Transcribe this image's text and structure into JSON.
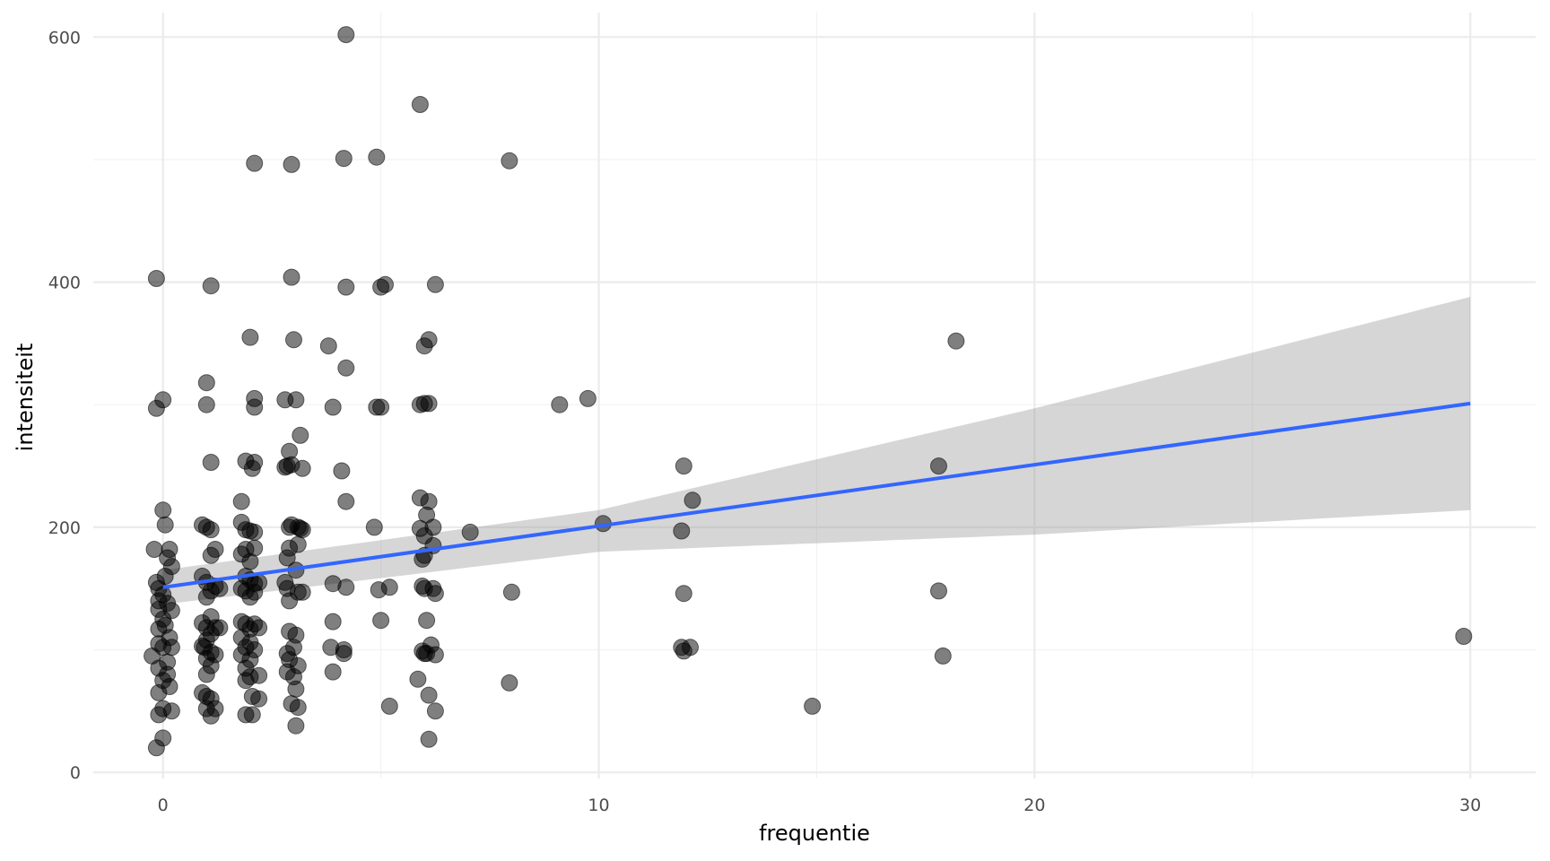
{
  "chart_data": {
    "type": "scatter",
    "xlabel": "frequentie",
    "ylabel": "intensiteit",
    "xlim": [
      -1.6,
      31.5
    ],
    "ylim": [
      -5,
      620
    ],
    "x_ticks": [
      0,
      10,
      20,
      30
    ],
    "x_tick_labels": [
      "0",
      "10",
      "20",
      "30"
    ],
    "y_ticks": [
      0,
      200,
      400,
      600
    ],
    "y_tick_labels": [
      "0",
      "200",
      "400",
      "600"
    ],
    "x_minor_ticks": [
      5,
      15,
      25
    ],
    "y_minor_ticks": [
      100,
      300,
      500
    ],
    "grid": true,
    "legend": "none",
    "point_color": "#000000",
    "point_alpha": 0.5,
    "fit": {
      "method": "linear",
      "color": "#3366FF",
      "band_color": "#999999",
      "band_alpha": 0.4,
      "x_range": [
        0,
        30
      ],
      "line": [
        [
          0,
          151
        ],
        [
          30,
          301
        ]
      ],
      "lower": [
        [
          0,
          137
        ],
        [
          10,
          180
        ],
        [
          20,
          194
        ],
        [
          30,
          214
        ]
      ],
      "upper": [
        [
          0,
          165
        ],
        [
          10,
          214
        ],
        [
          20,
          297
        ],
        [
          30,
          388
        ]
      ]
    },
    "points": [
      [
        -0.15,
        403
      ],
      [
        -0.15,
        297
      ],
      [
        0.0,
        304
      ],
      [
        -0.2,
        182
      ],
      [
        0.0,
        214
      ],
      [
        0.05,
        202
      ],
      [
        0.15,
        182
      ],
      [
        0.2,
        168
      ],
      [
        0.1,
        175
      ],
      [
        -0.15,
        155
      ],
      [
        -0.1,
        150
      ],
      [
        0.0,
        145
      ],
      [
        0.1,
        138
      ],
      [
        -0.1,
        133
      ],
      [
        0.2,
        132
      ],
      [
        0.0,
        125
      ],
      [
        0.05,
        120
      ],
      [
        -0.1,
        117
      ],
      [
        0.15,
        110
      ],
      [
        -0.1,
        105
      ],
      [
        0.0,
        102
      ],
      [
        0.2,
        102
      ],
      [
        -0.25,
        95
      ],
      [
        0.1,
        90
      ],
      [
        -0.1,
        85
      ],
      [
        0.1,
        80
      ],
      [
        0.0,
        75
      ],
      [
        0.15,
        70
      ],
      [
        -0.1,
        65
      ],
      [
        0.0,
        52
      ],
      [
        0.2,
        50
      ],
      [
        -0.1,
        47
      ],
      [
        0.0,
        28
      ],
      [
        -0.15,
        20
      ],
      [
        -0.1,
        140
      ],
      [
        0.05,
        160
      ],
      [
        1.0,
        318
      ],
      [
        1.0,
        300
      ],
      [
        1.1,
        397
      ],
      [
        1.1,
        253
      ],
      [
        0.9,
        202
      ],
      [
        1.0,
        200
      ],
      [
        1.1,
        198
      ],
      [
        1.2,
        182
      ],
      [
        1.1,
        177
      ],
      [
        0.9,
        160
      ],
      [
        1.0,
        155
      ],
      [
        1.2,
        152
      ],
      [
        1.1,
        148
      ],
      [
        1.0,
        143
      ],
      [
        1.3,
        150
      ],
      [
        1.1,
        127
      ],
      [
        0.9,
        122
      ],
      [
        1.0,
        118
      ],
      [
        1.2,
        118
      ],
      [
        1.1,
        113
      ],
      [
        1.0,
        108
      ],
      [
        0.9,
        103
      ],
      [
        1.1,
        98
      ],
      [
        1.2,
        96
      ],
      [
        1.0,
        93
      ],
      [
        1.1,
        87
      ],
      [
        1.0,
        80
      ],
      [
        0.9,
        65
      ],
      [
        1.0,
        62
      ],
      [
        1.1,
        60
      ],
      [
        1.0,
        52
      ],
      [
        1.2,
        52
      ],
      [
        1.1,
        46
      ],
      [
        1.3,
        118
      ],
      [
        0.95,
        102
      ],
      [
        2.1,
        497
      ],
      [
        2.0,
        355
      ],
      [
        2.1,
        305
      ],
      [
        2.1,
        298
      ],
      [
        1.9,
        254
      ],
      [
        2.1,
        253
      ],
      [
        2.05,
        248
      ],
      [
        1.8,
        221
      ],
      [
        1.8,
        204
      ],
      [
        1.9,
        198
      ],
      [
        2.0,
        197
      ],
      [
        2.1,
        196
      ],
      [
        1.9,
        182
      ],
      [
        2.1,
        183
      ],
      [
        1.8,
        178
      ],
      [
        2.0,
        172
      ],
      [
        1.9,
        160
      ],
      [
        2.0,
        157
      ],
      [
        2.1,
        154
      ],
      [
        2.2,
        155
      ],
      [
        1.8,
        150
      ],
      [
        1.9,
        148
      ],
      [
        2.1,
        147
      ],
      [
        2.0,
        143
      ],
      [
        1.8,
        123
      ],
      [
        1.9,
        121
      ],
      [
        2.1,
        121
      ],
      [
        2.0,
        117
      ],
      [
        2.2,
        118
      ],
      [
        1.8,
        110
      ],
      [
        2.0,
        106
      ],
      [
        1.9,
        102
      ],
      [
        2.1,
        100
      ],
      [
        1.8,
        96
      ],
      [
        2.0,
        92
      ],
      [
        1.9,
        85
      ],
      [
        2.0,
        78
      ],
      [
        2.2,
        79
      ],
      [
        1.9,
        75
      ],
      [
        2.05,
        62
      ],
      [
        2.2,
        60
      ],
      [
        1.9,
        47
      ],
      [
        2.05,
        47
      ],
      [
        2.95,
        496
      ],
      [
        2.95,
        404
      ],
      [
        3.0,
        353
      ],
      [
        2.8,
        304
      ],
      [
        3.05,
        304
      ],
      [
        2.9,
        262
      ],
      [
        2.85,
        250
      ],
      [
        2.95,
        251
      ],
      [
        3.2,
        248
      ],
      [
        3.15,
        275
      ],
      [
        2.8,
        249
      ],
      [
        2.9,
        200
      ],
      [
        2.95,
        202
      ],
      [
        3.1,
        200
      ],
      [
        3.15,
        199
      ],
      [
        3.2,
        198
      ],
      [
        3.1,
        186
      ],
      [
        2.9,
        183
      ],
      [
        2.85,
        175
      ],
      [
        3.05,
        165
      ],
      [
        2.8,
        155
      ],
      [
        2.85,
        150
      ],
      [
        3.1,
        147
      ],
      [
        3.2,
        147
      ],
      [
        2.9,
        140
      ],
      [
        2.9,
        115
      ],
      [
        3.05,
        112
      ],
      [
        3.0,
        102
      ],
      [
        2.85,
        97
      ],
      [
        2.9,
        92
      ],
      [
        3.1,
        87
      ],
      [
        2.85,
        82
      ],
      [
        3.0,
        78
      ],
      [
        3.05,
        68
      ],
      [
        2.95,
        56
      ],
      [
        3.1,
        53
      ],
      [
        3.05,
        38
      ],
      [
        3.8,
        348
      ],
      [
        4.2,
        396
      ],
      [
        4.2,
        330
      ],
      [
        4.2,
        602
      ],
      [
        4.15,
        501
      ],
      [
        3.9,
        298
      ],
      [
        4.1,
        246
      ],
      [
        4.2,
        221
      ],
      [
        3.9,
        154
      ],
      [
        4.2,
        151
      ],
      [
        3.9,
        123
      ],
      [
        3.85,
        102
      ],
      [
        4.15,
        100
      ],
      [
        4.15,
        97
      ],
      [
        3.9,
        82
      ],
      [
        4.9,
        502
      ],
      [
        5.0,
        396
      ],
      [
        5.1,
        398
      ],
      [
        4.9,
        298
      ],
      [
        5.0,
        298
      ],
      [
        4.85,
        200
      ],
      [
        4.95,
        149
      ],
      [
        5.2,
        151
      ],
      [
        5.0,
        124
      ],
      [
        5.2,
        54
      ],
      [
        5.9,
        545
      ],
      [
        6.1,
        353
      ],
      [
        6.0,
        348
      ],
      [
        6.25,
        398
      ],
      [
        6.0,
        301
      ],
      [
        6.1,
        301
      ],
      [
        5.9,
        300
      ],
      [
        5.9,
        224
      ],
      [
        6.1,
        221
      ],
      [
        6.05,
        210
      ],
      [
        6.2,
        200
      ],
      [
        5.9,
        199
      ],
      [
        6.0,
        193
      ],
      [
        6.2,
        185
      ],
      [
        6.0,
        177
      ],
      [
        5.95,
        174
      ],
      [
        5.95,
        152
      ],
      [
        6.0,
        150
      ],
      [
        6.2,
        150
      ],
      [
        6.25,
        146
      ],
      [
        6.05,
        124
      ],
      [
        6.15,
        104
      ],
      [
        5.95,
        99
      ],
      [
        6.0,
        97
      ],
      [
        6.05,
        97
      ],
      [
        6.25,
        96
      ],
      [
        5.85,
        76
      ],
      [
        6.1,
        63
      ],
      [
        6.25,
        50
      ],
      [
        6.1,
        27
      ],
      [
        7.05,
        196
      ],
      [
        7.95,
        499
      ],
      [
        8.0,
        147
      ],
      [
        7.95,
        73
      ],
      [
        9.1,
        300
      ],
      [
        9.75,
        305
      ],
      [
        10.1,
        203
      ],
      [
        11.95,
        250
      ],
      [
        12.15,
        222
      ],
      [
        11.9,
        197
      ],
      [
        11.95,
        146
      ],
      [
        11.9,
        102
      ],
      [
        12.1,
        102
      ],
      [
        11.95,
        99
      ],
      [
        14.9,
        54
      ],
      [
        17.8,
        250
      ],
      [
        18.2,
        352
      ],
      [
        17.8,
        148
      ],
      [
        17.9,
        95
      ],
      [
        29.85,
        111
      ]
    ]
  }
}
